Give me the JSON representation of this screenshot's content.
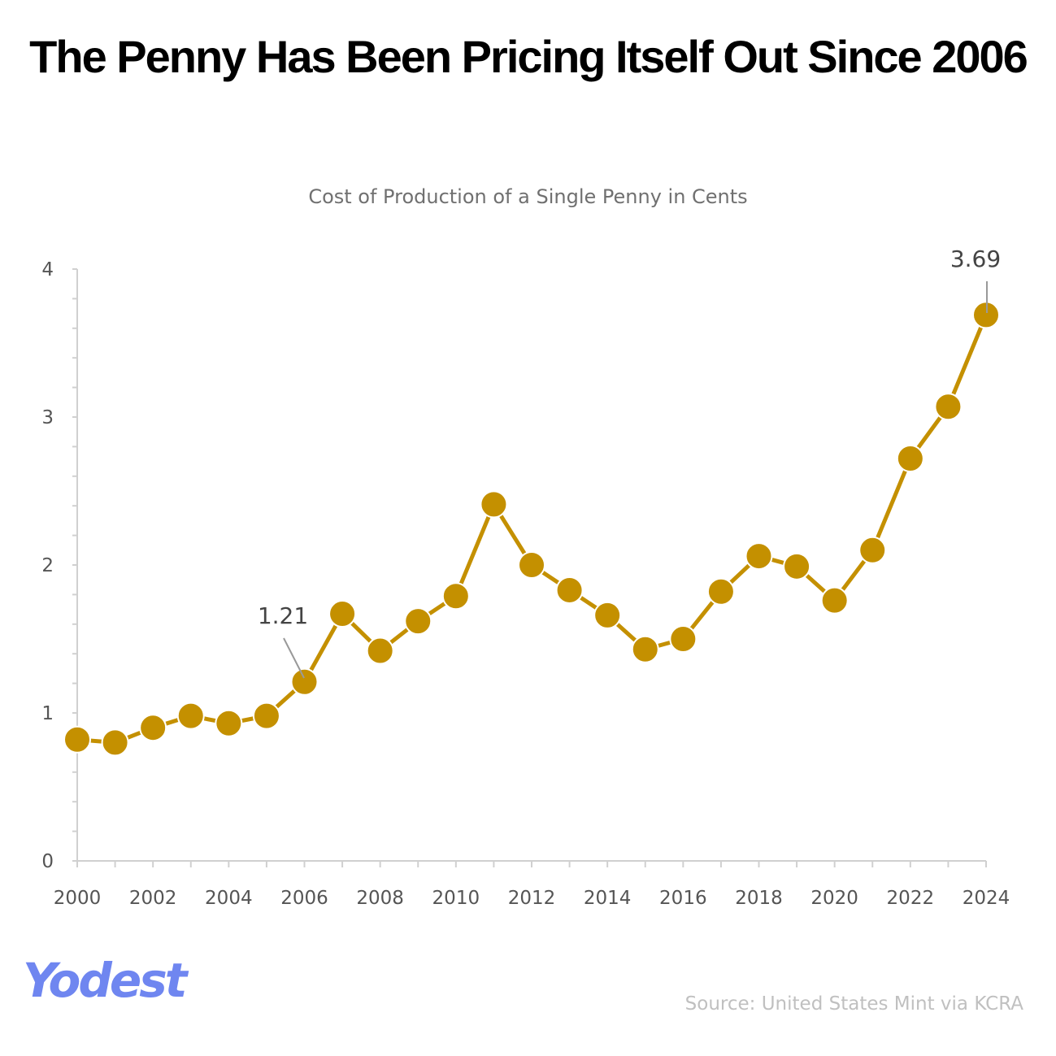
{
  "chart_data": {
    "type": "line",
    "title": "The Penny Has Been Pricing Itself Out Since 2006",
    "subtitle": "Cost of Production of a Single Penny in Cents",
    "xlabel": "",
    "ylabel": "",
    "x": [
      2000,
      2001,
      2002,
      2003,
      2004,
      2005,
      2006,
      2007,
      2008,
      2009,
      2010,
      2011,
      2012,
      2013,
      2014,
      2015,
      2016,
      2017,
      2018,
      2019,
      2020,
      2021,
      2022,
      2023,
      2024
    ],
    "series": [
      {
        "values": [
          0.82,
          0.8,
          0.9,
          0.98,
          0.93,
          0.98,
          1.21,
          1.67,
          1.42,
          1.62,
          1.79,
          2.41,
          2.0,
          1.83,
          1.66,
          1.43,
          1.5,
          1.82,
          2.06,
          1.99,
          1.76,
          2.1,
          2.72,
          3.07,
          3.69
        ],
        "color": "#c49000"
      }
    ],
    "xlim": [
      2000,
      2024
    ],
    "ylim": [
      0,
      4
    ],
    "xticks": [
      "2000",
      "2002",
      "2004",
      "2006",
      "2008",
      "2010",
      "2012",
      "2014",
      "2016",
      "2018",
      "2020",
      "2022",
      "2024"
    ],
    "yticks": [
      "0",
      "1",
      "2",
      "3",
      "4"
    ],
    "annotations": [
      {
        "x": 2006,
        "text": "1.21"
      },
      {
        "x": 2024,
        "text": "3.69"
      }
    ],
    "grid": false,
    "legend": "none"
  },
  "logo": "Yodest",
  "source": "Source: United States Mint via KCRA"
}
